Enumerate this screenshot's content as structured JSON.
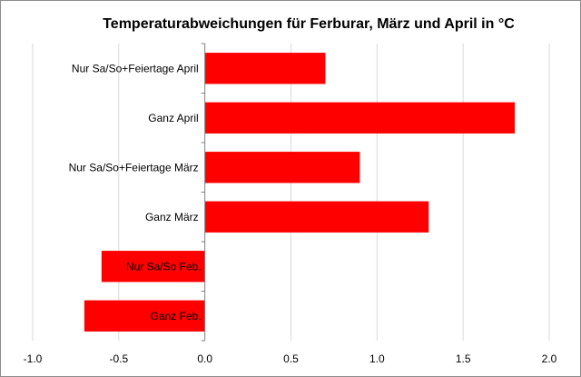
{
  "chart_data": {
    "type": "bar",
    "orientation": "horizontal",
    "title": "Temperaturabweichungen für Ferburar, März und April in °C",
    "xlabel": "",
    "ylabel": "",
    "categories": [
      "Nur Sa/So+Feiertage  April",
      "Ganz April",
      "Nur Sa/So+Feiertage März",
      "Ganz März",
      "Nur Sa/So Feb.",
      "Ganz Feb."
    ],
    "values": [
      0.7,
      1.8,
      0.9,
      1.3,
      -0.6,
      -0.7
    ],
    "xlim": [
      -1.0,
      2.0
    ],
    "ticks": [
      "-1.0",
      "-0.5",
      "0.0",
      "0.5",
      "1.0",
      "1.5",
      "2.0"
    ],
    "tick_values": [
      -1.0,
      -0.5,
      0.0,
      0.5,
      1.0,
      1.5,
      2.0
    ],
    "grid": "vertical",
    "legend": "none",
    "bar_color": "#ff0000",
    "grid_color": "#d9d9d9",
    "axis_color": "#808080"
  }
}
